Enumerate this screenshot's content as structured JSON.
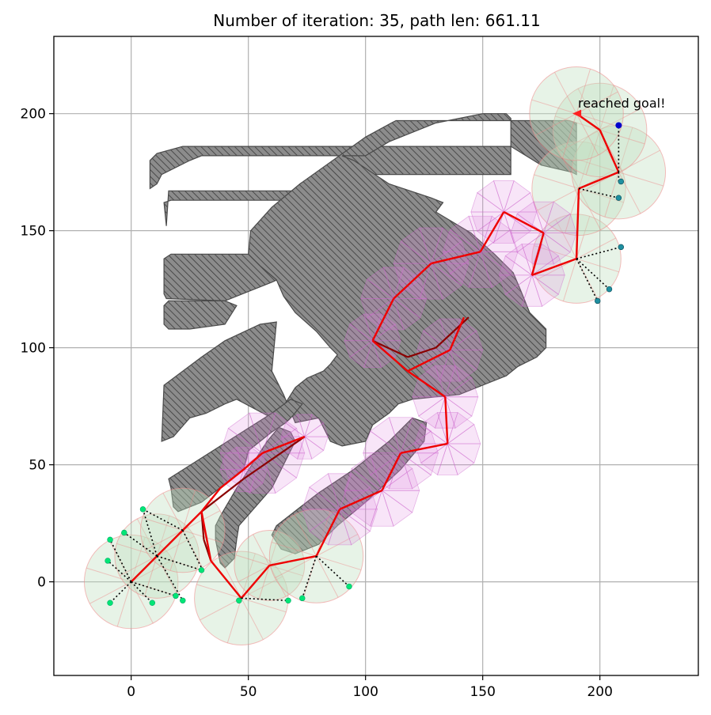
{
  "chart_data": {
    "type": "scatter",
    "title": "Number of iteration: 35, path len: 661.11",
    "xlabel": "",
    "ylabel": "",
    "xlim": [
      -33,
      242
    ],
    "ylim": [
      -40,
      233
    ],
    "xticks": [
      0,
      50,
      100,
      150,
      200
    ],
    "yticks": [
      0,
      50,
      100,
      150,
      200
    ],
    "grid": true,
    "annotation": "reached goal!",
    "colors": {
      "obstacle_fill": "#8c8c8c",
      "obstacle_edge": "#4a4a4a",
      "tree_edge": "#ee0000",
      "dark_tree_edge": "#8b0000",
      "sample_line": "#000000",
      "start_nodes": "#00e676",
      "goal_marker": "#ff2020",
      "mid_nodes": "#1f8fa0",
      "end_node": "#0000cc",
      "circle_fill": "#bfe0bf",
      "sweep_fill": "#e08ae0"
    },
    "obstacles": [
      [
        [
          8,
          168
        ],
        [
          8,
          180
        ],
        [
          11,
          183
        ],
        [
          22,
          186
        ],
        [
          162,
          186
        ],
        [
          162,
          174
        ],
        [
          100,
          174
        ],
        [
          98,
          174
        ],
        [
          93,
          180
        ],
        [
          90,
          182
        ],
        [
          30,
          182
        ],
        [
          25,
          180
        ],
        [
          13,
          174
        ],
        [
          11,
          170
        ]
      ],
      [
        [
          15,
          152
        ],
        [
          14,
          162
        ],
        [
          17,
          163
        ],
        [
          130,
          163
        ],
        [
          133,
          162
        ],
        [
          130,
          158
        ],
        [
          93,
          158
        ],
        [
          92,
          166
        ],
        [
          90,
          167
        ],
        [
          16,
          167
        ]
      ],
      [
        [
          14,
          123
        ],
        [
          14,
          138
        ],
        [
          17,
          140
        ],
        [
          80,
          140
        ],
        [
          80,
          137
        ],
        [
          60,
          128
        ],
        [
          50,
          124
        ],
        [
          40,
          120
        ],
        [
          15,
          121
        ]
      ],
      [
        [
          14,
          110
        ],
        [
          14,
          118
        ],
        [
          16,
          120
        ],
        [
          40,
          120
        ],
        [
          45,
          118
        ],
        [
          40,
          110
        ],
        [
          25,
          108
        ],
        [
          16,
          108
        ]
      ],
      [
        [
          13,
          60
        ],
        [
          14,
          84
        ],
        [
          30,
          96
        ],
        [
          40,
          103
        ],
        [
          55,
          110
        ],
        [
          62,
          111
        ],
        [
          60,
          90
        ],
        [
          65,
          80
        ],
        [
          70,
          68
        ],
        [
          80,
          70
        ],
        [
          85,
          60
        ],
        [
          90,
          58
        ],
        [
          100,
          60
        ],
        [
          103,
          67
        ],
        [
          110,
          72
        ],
        [
          114,
          76
        ],
        [
          120,
          78
        ],
        [
          130,
          79
        ],
        [
          140,
          80
        ],
        [
          150,
          84
        ],
        [
          160,
          88
        ],
        [
          165,
          92
        ],
        [
          173,
          96
        ],
        [
          177,
          100
        ],
        [
          177,
          108
        ],
        [
          170,
          115
        ],
        [
          168,
          120
        ],
        [
          166,
          125
        ],
        [
          163,
          132
        ],
        [
          155,
          140
        ],
        [
          145,
          149
        ],
        [
          130,
          158
        ],
        [
          133,
          162
        ],
        [
          128,
          164
        ],
        [
          110,
          170
        ],
        [
          95,
          180
        ],
        [
          90,
          182
        ],
        [
          100,
          182
        ],
        [
          110,
          188
        ],
        [
          120,
          192
        ],
        [
          130,
          196
        ],
        [
          140,
          198
        ],
        [
          150,
          200
        ],
        [
          160,
          200
        ],
        [
          162,
          198
        ],
        [
          162,
          186
        ],
        [
          175,
          178
        ],
        [
          188,
          175
        ],
        [
          190,
          174
        ],
        [
          190,
          196
        ],
        [
          187,
          197
        ],
        [
          113,
          197
        ],
        [
          111,
          196
        ],
        [
          100,
          190
        ],
        [
          72,
          170
        ],
        [
          60,
          160
        ],
        [
          51,
          150
        ],
        [
          50,
          140
        ],
        [
          55,
          135
        ],
        [
          62,
          129
        ],
        [
          65,
          122
        ],
        [
          70,
          115
        ],
        [
          79,
          107
        ],
        [
          85,
          100
        ],
        [
          88,
          97
        ],
        [
          85,
          93
        ],
        [
          82,
          90
        ],
        [
          75,
          87
        ],
        [
          70,
          83
        ],
        [
          65,
          75
        ],
        [
          60,
          70
        ],
        [
          45,
          78
        ],
        [
          40,
          76
        ],
        [
          32,
          72
        ],
        [
          25,
          70
        ],
        [
          18,
          62
        ]
      ],
      [
        [
          17,
          40
        ],
        [
          16,
          44
        ],
        [
          60,
          72
        ],
        [
          68,
          78
        ],
        [
          73,
          76
        ],
        [
          69,
          71
        ],
        [
          66,
          68
        ],
        [
          60,
          64
        ],
        [
          55,
          60
        ],
        [
          50,
          56
        ],
        [
          48,
          48
        ],
        [
          30,
          34
        ],
        [
          20,
          30
        ],
        [
          18,
          32
        ]
      ],
      [
        [
          36,
          18
        ],
        [
          36,
          24
        ],
        [
          38,
          28
        ],
        [
          45,
          40
        ],
        [
          58,
          60
        ],
        [
          63,
          66
        ],
        [
          68,
          64
        ],
        [
          70,
          60
        ],
        [
          60,
          40
        ],
        [
          46,
          24
        ],
        [
          45,
          18
        ],
        [
          44,
          10
        ],
        [
          40,
          6
        ],
        [
          38,
          8
        ]
      ],
      [
        [
          60,
          20
        ],
        [
          62,
          24
        ],
        [
          80,
          38
        ],
        [
          95,
          48
        ],
        [
          110,
          60
        ],
        [
          120,
          70
        ],
        [
          126,
          68
        ],
        [
          125,
          60
        ],
        [
          115,
          48
        ],
        [
          100,
          34
        ],
        [
          88,
          24
        ],
        [
          80,
          16
        ],
        [
          70,
          12
        ],
        [
          64,
          14
        ]
      ]
    ],
    "tree_edges": [
      {
        "x": [
          0,
          11
        ],
        "y": [
          0,
          11
        ]
      },
      {
        "x": [
          11,
          22
        ],
        "y": [
          11,
          22
        ]
      },
      {
        "x": [
          22,
          30
        ],
        "y": [
          22,
          30
        ]
      },
      {
        "x": [
          30,
          38
        ],
        "y": [
          30,
          40
        ]
      },
      {
        "x": [
          38,
          48
        ],
        "y": [
          40,
          48
        ]
      },
      {
        "x": [
          48,
          56
        ],
        "y": [
          48,
          55
        ]
      },
      {
        "x": [
          56,
          74
        ],
        "y": [
          55,
          62
        ]
      },
      {
        "x": [
          30,
          34
        ],
        "y": [
          30,
          9
        ]
      },
      {
        "x": [
          34,
          47
        ],
        "y": [
          9,
          -7
        ]
      },
      {
        "x": [
          47,
          59
        ],
        "y": [
          -7,
          7
        ]
      },
      {
        "x": [
          59,
          79
        ],
        "y": [
          7,
          11
        ]
      },
      {
        "x": [
          79,
          89
        ],
        "y": [
          11,
          31
        ]
      },
      {
        "x": [
          89,
          107
        ],
        "y": [
          31,
          39
        ]
      },
      {
        "x": [
          107,
          115
        ],
        "y": [
          39,
          55
        ]
      },
      {
        "x": [
          115,
          135
        ],
        "y": [
          55,
          59
        ]
      },
      {
        "x": [
          135,
          134
        ],
        "y": [
          59,
          79
        ]
      },
      {
        "x": [
          134,
          118
        ],
        "y": [
          79,
          90
        ]
      },
      {
        "x": [
          118,
          136
        ],
        "y": [
          90,
          99
        ]
      },
      {
        "x": [
          136,
          142
        ],
        "y": [
          99,
          113
        ]
      },
      {
        "x": [
          118,
          103
        ],
        "y": [
          90,
          103
        ]
      },
      {
        "x": [
          103,
          112
        ],
        "y": [
          103,
          121
        ]
      },
      {
        "x": [
          112,
          128
        ],
        "y": [
          121,
          136
        ]
      },
      {
        "x": [
          128,
          149
        ],
        "y": [
          136,
          141
        ]
      },
      {
        "x": [
          149,
          159
        ],
        "y": [
          141,
          158
        ]
      },
      {
        "x": [
          159,
          176
        ],
        "y": [
          158,
          149
        ]
      },
      {
        "x": [
          176,
          171
        ],
        "y": [
          149,
          131
        ]
      },
      {
        "x": [
          171,
          190
        ],
        "y": [
          131,
          138
        ]
      },
      {
        "x": [
          190,
          191
        ],
        "y": [
          138,
          168
        ]
      },
      {
        "x": [
          191,
          208
        ],
        "y": [
          168,
          175
        ]
      },
      {
        "x": [
          208,
          200
        ],
        "y": [
          175,
          193
        ]
      },
      {
        "x": [
          200,
          190
        ],
        "y": [
          193,
          200
        ]
      }
    ],
    "dark_edges": [
      {
        "x": [
          30,
          48
        ],
        "y": [
          30,
          44
        ]
      },
      {
        "x": [
          48,
          74
        ],
        "y": [
          44,
          62
        ]
      },
      {
        "x": [
          30,
          31
        ],
        "y": [
          30,
          18
        ]
      },
      {
        "x": [
          31,
          34
        ],
        "y": [
          18,
          9
        ]
      },
      {
        "x": [
          103,
          118
        ],
        "y": [
          103,
          96
        ]
      },
      {
        "x": [
          118,
          130
        ],
        "y": [
          96,
          100
        ]
      },
      {
        "x": [
          130,
          144
        ],
        "y": [
          100,
          113
        ]
      }
    ],
    "sample_edges": [
      {
        "from": [
          0,
          0
        ],
        "to": [
          -10,
          9
        ]
      },
      {
        "from": [
          0,
          0
        ],
        "to": [
          -9,
          18
        ]
      },
      {
        "from": [
          0,
          0
        ],
        "to": [
          -9,
          -9
        ]
      },
      {
        "from": [
          0,
          0
        ],
        "to": [
          9,
          -9
        ]
      },
      {
        "from": [
          0,
          0
        ],
        "to": [
          19,
          -6
        ]
      },
      {
        "from": [
          11,
          11
        ],
        "to": [
          -3,
          21
        ]
      },
      {
        "from": [
          11,
          11
        ],
        "to": [
          5,
          31
        ]
      },
      {
        "from": [
          11,
          11
        ],
        "to": [
          22,
          -8
        ]
      },
      {
        "from": [
          11,
          11
        ],
        "to": [
          30,
          5
        ]
      },
      {
        "from": [
          22,
          22
        ],
        "to": [
          5,
          31
        ]
      },
      {
        "from": [
          22,
          22
        ],
        "to": [
          30,
          6
        ]
      },
      {
        "from": [
          47,
          -7
        ],
        "to": [
          46,
          -8
        ]
      },
      {
        "from": [
          47,
          -7
        ],
        "to": [
          67,
          -8
        ]
      },
      {
        "from": [
          79,
          11
        ],
        "to": [
          73,
          -7
        ]
      },
      {
        "from": [
          79,
          11
        ],
        "to": [
          93,
          -2
        ]
      },
      {
        "from": [
          190,
          138
        ],
        "to": [
          209,
          143
        ]
      },
      {
        "from": [
          190,
          138
        ],
        "to": [
          204,
          125
        ]
      },
      {
        "from": [
          190,
          138
        ],
        "to": [
          199,
          120
        ]
      },
      {
        "from": [
          191,
          168
        ],
        "to": [
          208,
          164
        ]
      },
      {
        "from": [
          208,
          175
        ],
        "to": [
          208,
          171
        ]
      },
      {
        "from": [
          208,
          175
        ],
        "to": [
          208,
          195
        ]
      }
    ],
    "start_nodes": {
      "x": [
        -10,
        -9,
        -3,
        5,
        -9,
        9,
        19,
        22,
        30,
        46,
        67,
        73,
        93
      ],
      "y": [
        9,
        18,
        21,
        31,
        -9,
        -9,
        -6,
        -8,
        5,
        -8,
        -8,
        -7,
        -2
      ]
    },
    "mid_nodes": {
      "x": [
        209,
        204,
        199,
        208,
        209
      ],
      "y": [
        143,
        125,
        120,
        164,
        171
      ]
    },
    "end_node": {
      "x": [
        208
      ],
      "y": [
        195
      ]
    },
    "goal": {
      "x": 190,
      "y": 200
    },
    "explore_circles": [
      {
        "x": 0,
        "y": 0,
        "r": 20
      },
      {
        "x": 11,
        "y": 11,
        "r": 18
      },
      {
        "x": 22,
        "y": 22,
        "r": 18
      },
      {
        "x": 47,
        "y": -7,
        "r": 20
      },
      {
        "x": 59,
        "y": 7,
        "r": 15
      },
      {
        "x": 79,
        "y": 11,
        "r": 20
      },
      {
        "x": 190,
        "y": 138,
        "r": 19
      },
      {
        "x": 191,
        "y": 168,
        "r": 20
      },
      {
        "x": 208,
        "y": 175,
        "r": 20
      },
      {
        "x": 200,
        "y": 193,
        "r": 20
      },
      {
        "x": 190,
        "y": 200,
        "r": 20
      }
    ],
    "sweep_sectors": [
      {
        "x": 56,
        "y": 55,
        "r": 18
      },
      {
        "x": 74,
        "y": 62,
        "r": 10
      },
      {
        "x": 48,
        "y": 48,
        "r": 10
      },
      {
        "x": 89,
        "y": 31,
        "r": 16
      },
      {
        "x": 107,
        "y": 39,
        "r": 16
      },
      {
        "x": 115,
        "y": 55,
        "r": 16
      },
      {
        "x": 135,
        "y": 59,
        "r": 14
      },
      {
        "x": 134,
        "y": 79,
        "r": 14
      },
      {
        "x": 136,
        "y": 99,
        "r": 14
      },
      {
        "x": 103,
        "y": 103,
        "r": 12
      },
      {
        "x": 112,
        "y": 121,
        "r": 14
      },
      {
        "x": 128,
        "y": 136,
        "r": 16
      },
      {
        "x": 149,
        "y": 141,
        "r": 16
      },
      {
        "x": 159,
        "y": 158,
        "r": 14
      },
      {
        "x": 176,
        "y": 149,
        "r": 14
      },
      {
        "x": 171,
        "y": 131,
        "r": 14
      }
    ]
  }
}
